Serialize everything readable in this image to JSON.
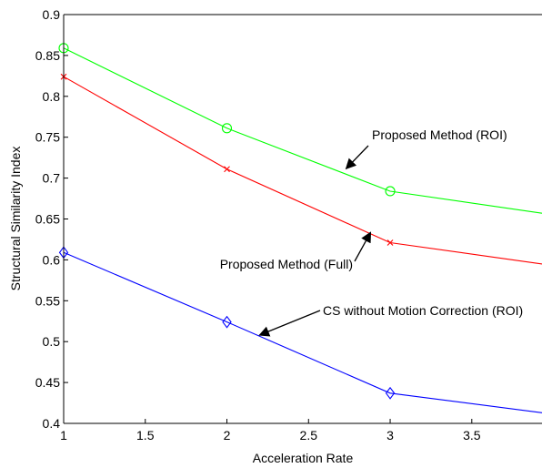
{
  "chart_data": {
    "type": "line",
    "xlabel": "Acceleration Rate",
    "ylabel": "Structural Similarity Index",
    "xlim": [
      1,
      3.93
    ],
    "ylim": [
      0.4,
      0.9
    ],
    "xticks": [
      "1",
      "1.5",
      "2",
      "2.5",
      "3",
      "3.5"
    ],
    "yticks": [
      "0.4",
      "0.45",
      "0.5",
      "0.55",
      "0.6",
      "0.65",
      "0.7",
      "0.75",
      "0.8",
      "0.85",
      "0.9"
    ],
    "x": [
      1,
      2,
      3,
      3.93
    ],
    "series": [
      {
        "color": "#00ff00",
        "marker": "circle",
        "values": [
          0.859,
          0.761,
          0.684,
          0.657
        ]
      },
      {
        "color": "#ff0000",
        "marker": "x",
        "values": [
          0.824,
          0.711,
          0.621,
          0.595
        ]
      },
      {
        "color": "#0000ff",
        "marker": "diamond",
        "values": [
          0.609,
          0.524,
          0.437,
          0.413
        ]
      }
    ],
    "grid": false,
    "annotations": [
      {
        "text": "Proposed Method (ROI)",
        "series": 0,
        "arrow_to": [
          2.73,
          0.7115
        ]
      },
      {
        "text": "Proposed Method (Full)",
        "series": 1,
        "arrow_to": [
          2.88,
          0.6335
        ]
      },
      {
        "text": "CS without Motion Correction (ROI)",
        "series": 2,
        "arrow_to": [
          2.2,
          0.508
        ]
      }
    ]
  }
}
